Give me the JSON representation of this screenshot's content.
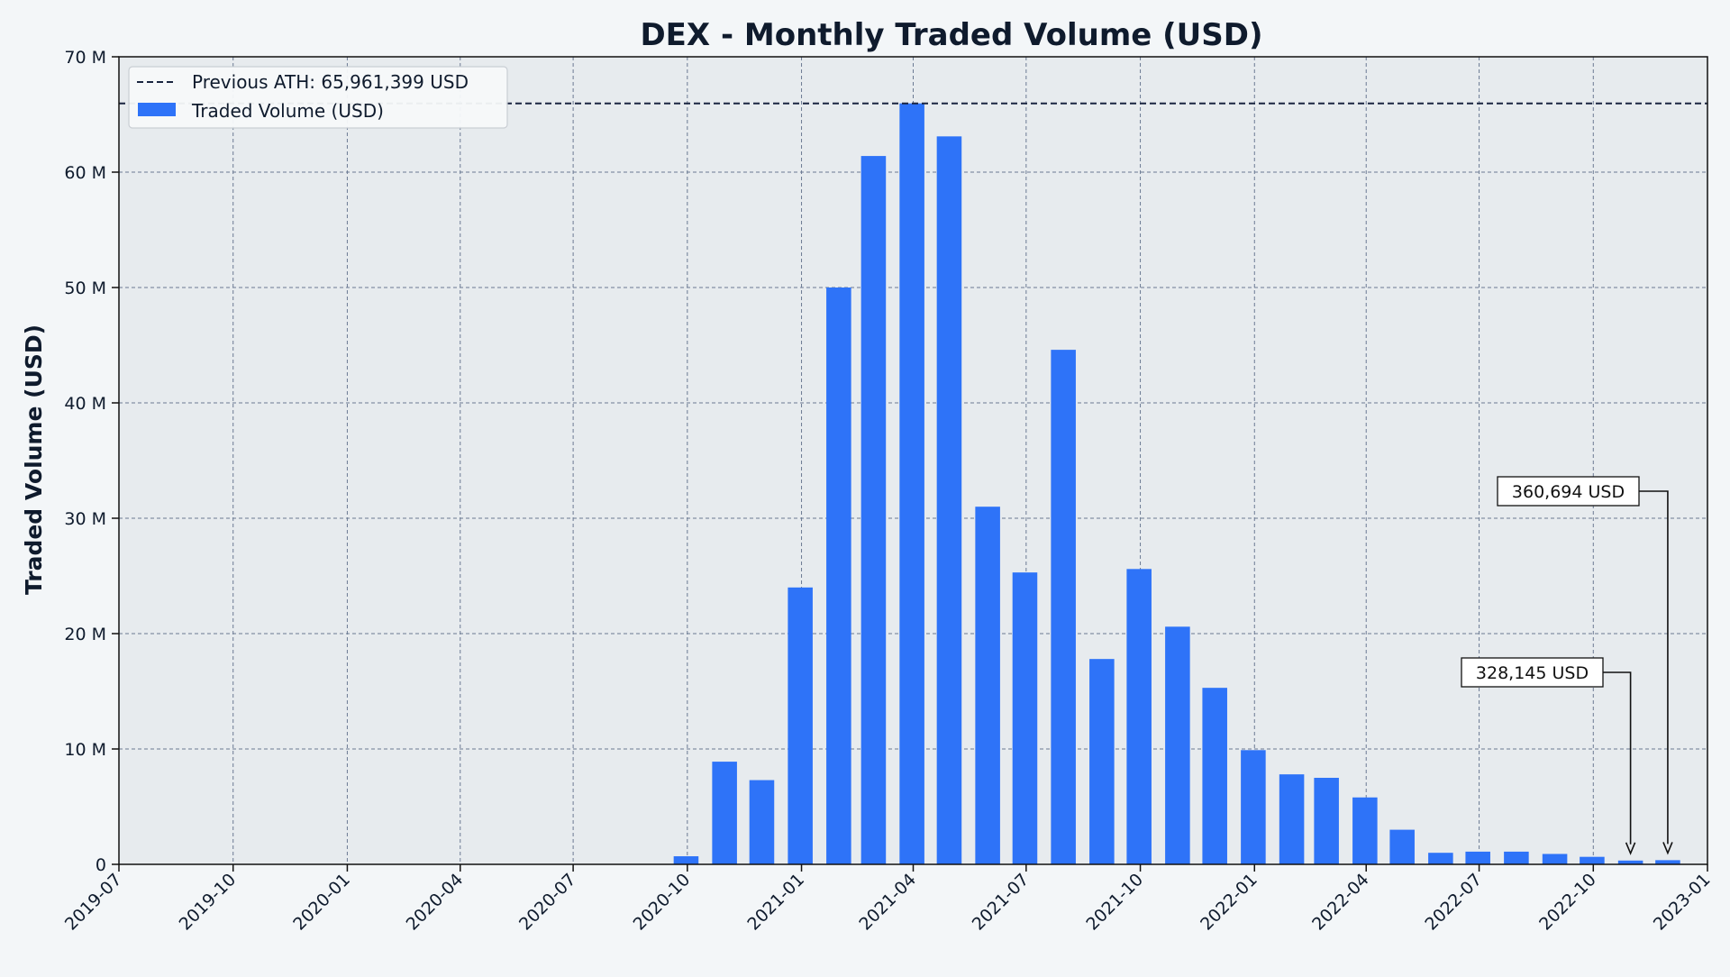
{
  "chart_data": {
    "type": "bar",
    "title": "DEX - Monthly Traded Volume (USD)",
    "xlabel": "",
    "ylabel": "Traded Volume (USD)",
    "ylim": [
      0,
      70000000
    ],
    "xlim": [
      "2019-07",
      "2023-01"
    ],
    "y_ticks": [
      0,
      10000000,
      20000000,
      30000000,
      40000000,
      50000000,
      60000000,
      70000000
    ],
    "y_tick_labels": [
      "0",
      "10 M",
      "20 M",
      "30 M",
      "40 M",
      "50 M",
      "60 M",
      "70 M"
    ],
    "x_ticks": [
      "2019-07",
      "2019-10",
      "2020-01",
      "2020-04",
      "2020-07",
      "2020-10",
      "2021-01",
      "2021-04",
      "2021-07",
      "2021-10",
      "2022-01",
      "2022-04",
      "2022-07",
      "2022-10",
      "2023-01"
    ],
    "grid": true,
    "legend_position": "top-left",
    "colors": {
      "bar": "#2e73f8",
      "ath_line": "#1a2540",
      "background": "#f3f6f8",
      "plot_area": "#e7ebee",
      "grid": "#6b7a93"
    },
    "series": [
      {
        "name": "Traded Volume (USD)",
        "x": [
          "2020-09-30",
          "2020-10-31",
          "2020-11-30",
          "2020-12-31",
          "2021-01-31",
          "2021-02-28",
          "2021-03-31",
          "2021-04-30",
          "2021-05-31",
          "2021-06-30",
          "2021-07-31",
          "2021-08-31",
          "2021-09-30",
          "2021-10-31",
          "2021-11-30",
          "2021-12-31",
          "2022-01-31",
          "2022-02-28",
          "2022-03-31",
          "2022-04-30",
          "2022-05-31",
          "2022-06-30",
          "2022-07-31",
          "2022-08-31",
          "2022-09-30",
          "2022-10-31",
          "2022-11-30"
        ],
        "values": [
          700000,
          8900000,
          7300000,
          24000000,
          50000000,
          61400000,
          65961399,
          63100000,
          31000000,
          25300000,
          44600000,
          17800000,
          25600000,
          20600000,
          15300000,
          9900000,
          7800000,
          7500000,
          5800000,
          3000000,
          1000000,
          1100000,
          1100000,
          900000,
          650000,
          328145,
          360694
        ]
      }
    ],
    "reference_lines": [
      {
        "name": "Previous ATH: 65,961,399 USD",
        "value": 65961399
      }
    ],
    "annotations": [
      {
        "text": "328,145 USD",
        "x": "2022-10-31",
        "value": 328145
      },
      {
        "text": "360,694 USD",
        "x": "2022-11-30",
        "value": 360694
      }
    ]
  }
}
